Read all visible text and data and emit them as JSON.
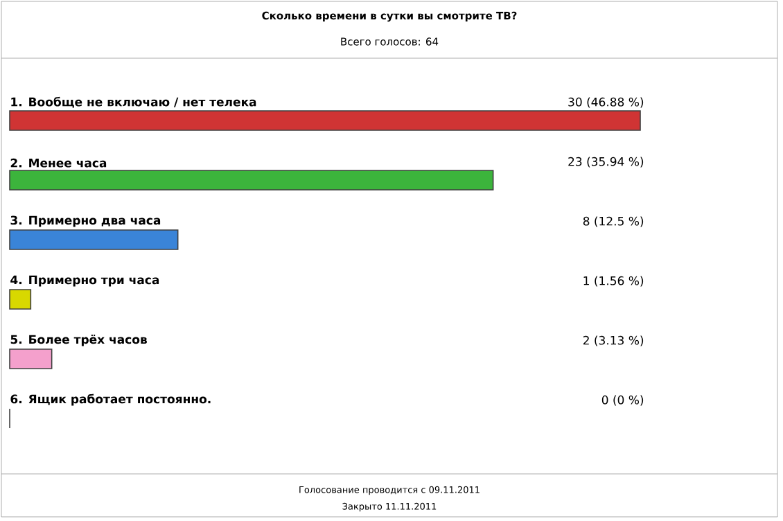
{
  "chart_data": {
    "type": "bar",
    "orientation": "horizontal",
    "title": "Сколько времени в сутки вы смотрите ТВ?",
    "subtitle": "Всего голосов: 64",
    "categories": [
      "1. Вообще не включаю / нет телека",
      "2. Менее часа",
      "3. Примерно два часа",
      "4. Примерно три часа",
      "5. Более трёх часов",
      "6. Ящик работает постоянно."
    ],
    "values": [
      30,
      23,
      8,
      1,
      2,
      0
    ],
    "colors": [
      "#d03434",
      "#3cb43c",
      "#3a84d8",
      "#d8d800",
      "#f4a0cc",
      "#30a8e8"
    ],
    "value_labels": [
      "30 (46.88 %)",
      "23 (35.94 %)",
      "8 (12.5 %)",
      "1 (1.56 %)",
      "2 (3.13 %)",
      "0 (0 %)"
    ],
    "annotations": [
      "Голосование проводится с 09.11.2011",
      "Закрыто 11.11.2011"
    ]
  }
}
